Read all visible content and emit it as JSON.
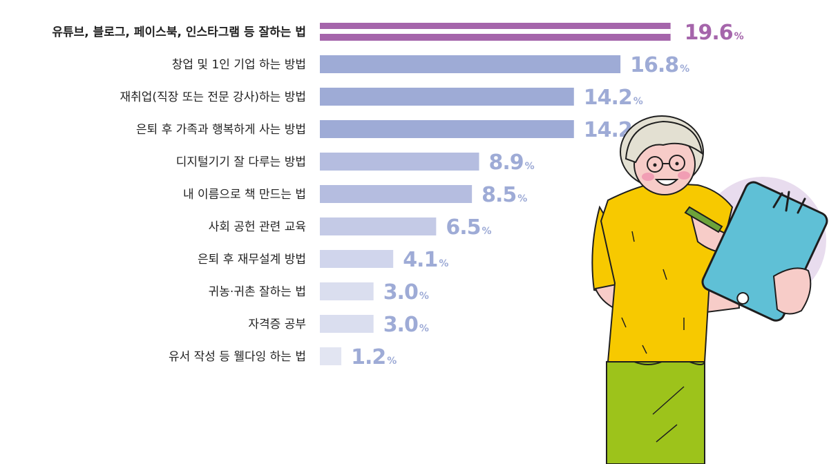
{
  "chart_data": {
    "type": "bar",
    "orientation": "horizontal",
    "categories": [
      "유튜브, 블로그, 페이스북, 인스타그램 등 잘하는 법",
      "창업 및 1인 기업 하는 방법",
      "재취업(직장 또는 전문 강사)하는 방법",
      "은퇴 후 가족과 행복하게 사는 방법",
      "디지털기기 잘 다루는 방법",
      "내 이름으로 책 만드는 법",
      "사회 공헌 관련 교육",
      "은퇴 후 재무설계 방법",
      "귀농·귀촌 잘하는 법",
      "자격증 공부",
      "유서 작성 등 웰다잉 하는 법"
    ],
    "values": [
      19.6,
      16.8,
      14.2,
      14.2,
      8.9,
      8.5,
      6.5,
      4.1,
      3.0,
      3.0,
      1.2
    ],
    "value_labels": [
      "19.6",
      "16.8",
      "14.2",
      "14.2",
      "8.9",
      "8.5",
      "6.5",
      "4.1",
      "3.0",
      "3.0",
      "1.2"
    ],
    "unit": "%",
    "bar_colors": [
      "#a565ab",
      "#9eabd6",
      "#9eabd6",
      "#9eabd6",
      "#b5bde0",
      "#b5bde0",
      "#c4cae6",
      "#d0d5ec",
      "#dadeef",
      "#dadeef",
      "#e2e5f2"
    ],
    "label_colors": [
      "#a565ab",
      "#9eabd6",
      "#9eabd6",
      "#9eabd6",
      "#9eabd6",
      "#9eabd6",
      "#9eabd6",
      "#9eabd6",
      "#9eabd6",
      "#9eabd6",
      "#9eabd6"
    ],
    "highlight_index": 0,
    "grid": false,
    "legend": "none"
  },
  "illustration": {
    "subject": "smiling elderly woman writing on a tablet",
    "icon": "elderly-woman-tablet-illustration"
  }
}
